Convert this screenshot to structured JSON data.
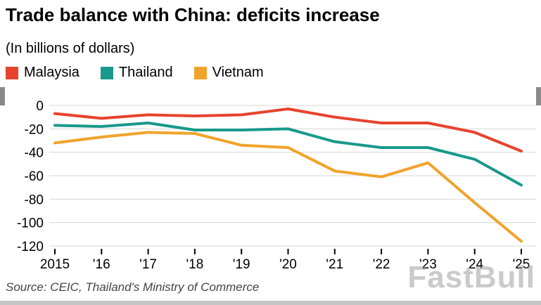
{
  "header": {
    "title": "Trade balance with China: deficits increase",
    "subtitle": "(In billions of dollars)"
  },
  "legend": [
    {
      "label": "Malaysia",
      "color": "#e8432d"
    },
    {
      "label": "Thailand",
      "color": "#18998b"
    },
    {
      "label": "Vietnam",
      "color": "#f0a32a"
    }
  ],
  "chart_data": {
    "type": "line",
    "x": [
      2015,
      2016,
      2017,
      2018,
      2019,
      2020,
      2021,
      2022,
      2023,
      2024,
      2025
    ],
    "x_tick_labels": [
      "2015",
      "'16",
      "'17",
      "'18",
      "'19",
      "'20",
      "'21",
      "'22",
      "'23",
      "'24",
      "'25"
    ],
    "series": [
      {
        "name": "Malaysia",
        "color": "#e8432d",
        "values": [
          -7,
          -11,
          -8,
          -9,
          -8,
          -3,
          -10,
          -15,
          -15,
          -23,
          -39
        ]
      },
      {
        "name": "Thailand",
        "color": "#18998b",
        "values": [
          -17,
          -18,
          -15,
          -21,
          -21,
          -20,
          -31,
          -36,
          -36,
          -46,
          -68
        ]
      },
      {
        "name": "Vietnam",
        "color": "#f0a32a",
        "values": [
          -32,
          -27,
          -23,
          -24,
          -34,
          -36,
          -56,
          -61,
          -49,
          -83,
          -116
        ]
      }
    ],
    "ylim": [
      -120,
      0
    ],
    "y_ticks": [
      0,
      -20,
      -40,
      -60,
      -80,
      -100,
      -120
    ],
    "grid": true,
    "legend_position": "top",
    "title": "Trade balance with China: deficits increase",
    "ylabel": "In billions of dollars"
  },
  "footer": {
    "source": "Source: CEIC, Thailand's Ministry of Commerce"
  },
  "watermark": "FastBull"
}
